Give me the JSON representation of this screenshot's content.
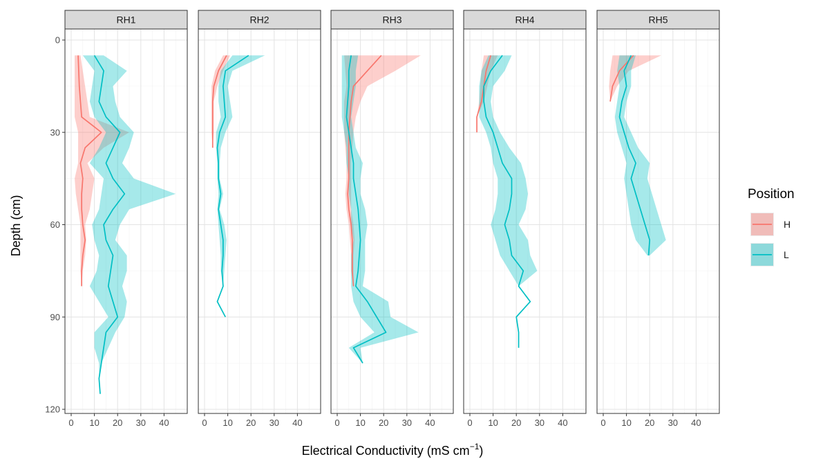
{
  "chart_data": {
    "type": "line",
    "orientation": "depth-profile",
    "xlabel": "Electrical Conductivity (mS cm",
    "xlabel_sup": "−1",
    "xlabel_close": ")",
    "ylabel": "Depth (cm)",
    "x_ticks": [
      "0",
      "10",
      "20",
      "30",
      "40"
    ],
    "y_ticks": [
      "0",
      "30",
      "60",
      "90",
      "120"
    ],
    "xlim": [
      -2,
      48
    ],
    "ylim": [
      0,
      120
    ],
    "y_reversed": true,
    "grid": true,
    "legend": {
      "title": "Position",
      "placement": "right",
      "entries": [
        {
          "label": "H",
          "color": "#F8766D",
          "fill": "#F8766D"
        },
        {
          "label": "L",
          "color": "#00BFC4",
          "fill": "#00BFC4"
        }
      ]
    },
    "panels": [
      {
        "name": "RH1",
        "series": [
          {
            "name": "H",
            "color": "#F8766D",
            "depth": [
              5,
              15,
              25,
              30,
              35,
              40,
              45,
              50,
              55,
              60,
              65,
              70,
              75,
              80
            ],
            "mean": [
              3,
              3.5,
              4.5,
              13,
              6,
              4,
              5,
              4.5,
              4.5,
              5,
              6,
              5,
              4.5,
              4.5
            ],
            "lower": [
              1.5,
              1.5,
              1.5,
              3,
              3,
              3,
              1.5,
              2,
              3,
              4,
              4,
              4,
              4,
              4.5
            ],
            "upper": [
              4,
              6,
              8,
              25,
              14,
              7,
              10,
              9,
              8,
              6,
              6.5,
              6,
              5,
              4.5
            ]
          },
          {
            "name": "L",
            "color": "#00BFC4",
            "depth": [
              5,
              10,
              15,
              20,
              25,
              30,
              35,
              40,
              45,
              50,
              55,
              60,
              65,
              70,
              75,
              80,
              85,
              90,
              95,
              100,
              105,
              110,
              115
            ],
            "mean": [
              10,
              14,
              13,
              12,
              15,
              21,
              18,
              15,
              18,
              23,
              18,
              14,
              15,
              18,
              17,
              16,
              18,
              20,
              15,
              14,
              13,
              12,
              12.5
            ],
            "lower": [
              5,
              10,
              9,
              8,
              10,
              15,
              12,
              8,
              14,
              13,
              12,
              9,
              10,
              12,
              11,
              8,
              12,
              16,
              10,
              10,
              12,
              12,
              12.5
            ],
            "upper": [
              14,
              24,
              18,
              19,
              21,
              27,
              25,
              22,
              27,
              45,
              25,
              21,
              19,
              24,
              24,
              22,
              24,
              23,
              19,
              16,
              13,
              12,
              12.5
            ]
          }
        ]
      },
      {
        "name": "RH2",
        "series": [
          {
            "name": "H",
            "color": "#F8766D",
            "depth": [
              5,
              10,
              15,
              20,
              25,
              30,
              35
            ],
            "mean": [
              9.5,
              6,
              4,
              3.5,
              3.5,
              3.5,
              3.5
            ],
            "lower": [
              8,
              4.5,
              3,
              3,
              3,
              3,
              3.5
            ],
            "upper": [
              11,
              8,
              5.5,
              4,
              4,
              4,
              3.5
            ]
          },
          {
            "name": "L",
            "color": "#00BFC4",
            "depth": [
              5,
              10,
              15,
              20,
              25,
              30,
              35,
              40,
              45,
              50,
              55,
              60,
              65,
              70,
              75,
              80,
              85,
              90
            ],
            "mean": [
              19,
              9,
              8,
              8.5,
              9,
              6.5,
              5.5,
              6,
              6,
              7,
              6,
              7,
              8,
              8,
              7.5,
              8,
              5.5,
              9
            ],
            "lower": [
              12,
              7,
              6,
              6,
              7,
              5,
              5,
              5.5,
              5.5,
              6,
              5.5,
              6,
              6.5,
              7,
              7,
              8,
              5.5,
              9
            ],
            "upper": [
              26,
              12,
              10,
              11,
              12,
              9,
              7,
              6.5,
              6.5,
              8,
              6.5,
              8.5,
              9.5,
              9,
              8.5,
              8,
              5.5,
              9
            ]
          }
        ]
      },
      {
        "name": "RH3",
        "series": [
          {
            "name": "H",
            "color": "#F8766D",
            "depth": [
              5,
              10,
              15,
              20,
              25,
              30,
              35,
              40,
              45,
              50,
              55,
              60,
              65,
              70,
              75,
              80
            ],
            "mean": [
              19,
              13,
              7,
              6,
              5.5,
              5,
              5,
              5,
              5,
              4.5,
              5,
              6,
              6.5,
              6.5,
              6.5,
              7
            ],
            "lower": [
              3,
              3.5,
              4,
              3,
              3,
              3,
              3.5,
              4,
              4,
              3.5,
              4,
              5,
              5.5,
              6,
              6,
              7
            ],
            "upper": [
              36,
              25,
              13,
              10,
              8,
              7,
              6.5,
              6,
              6,
              6,
              6,
              7,
              7.5,
              7,
              7,
              7
            ]
          },
          {
            "name": "L",
            "color": "#00BFC4",
            "depth": [
              5,
              10,
              15,
              20,
              25,
              30,
              35,
              40,
              45,
              50,
              55,
              60,
              65,
              70,
              75,
              80,
              85,
              90,
              95,
              100,
              105
            ],
            "mean": [
              6,
              5,
              5,
              4.5,
              4,
              5,
              6,
              7,
              7,
              8,
              9,
              9.5,
              10,
              9.5,
              9,
              8,
              13,
              17,
              21,
              7,
              11
            ],
            "lower": [
              2,
              2,
              2,
              2,
              2,
              3,
              4,
              4,
              5,
              5,
              6,
              6,
              7,
              6,
              6,
              6,
              7,
              10,
              16,
              5,
              11
            ],
            "upper": [
              9,
              8,
              8,
              7,
              6,
              7,
              8,
              11,
              10,
              10,
              12,
              13,
              12,
              12,
              12,
              11,
              22,
              23,
              35,
              10,
              11
            ]
          }
        ]
      },
      {
        "name": "RH4",
        "series": [
          {
            "name": "H",
            "color": "#F8766D",
            "depth": [
              5,
              10,
              15,
              20,
              25,
              30
            ],
            "mean": [
              9,
              7,
              6,
              5,
              3,
              3
            ],
            "lower": [
              6,
              5,
              4.5,
              4,
              3,
              3
            ],
            "upper": [
              12,
              9,
              7.5,
              6,
              3,
              3
            ]
          },
          {
            "name": "L",
            "color": "#00BFC4",
            "depth": [
              5,
              10,
              15,
              20,
              25,
              30,
              35,
              40,
              45,
              50,
              55,
              60,
              65,
              70,
              75,
              80,
              85,
              90,
              95,
              100
            ],
            "mean": [
              14,
              9,
              6,
              6,
              7,
              10,
              12,
              14,
              18,
              18,
              17,
              15,
              17,
              18,
              23,
              21,
              26,
              20,
              21,
              21
            ],
            "lower": [
              8,
              5,
              4,
              4,
              4,
              7,
              9,
              10,
              12,
              12,
              11,
              9,
              11,
              13,
              17,
              21,
              26,
              20,
              21,
              21
            ],
            "upper": [
              18,
              15,
              10,
              9,
              10,
              13,
              17,
              22,
              24,
              25,
              24,
              21,
              25,
              26,
              29,
              21,
              26,
              20,
              21,
              21
            ]
          }
        ]
      },
      {
        "name": "RH5",
        "series": [
          {
            "name": "H",
            "color": "#F8766D",
            "depth": [
              5,
              10,
              15,
              20
            ],
            "mean": [
              13,
              7,
              4,
              3
            ],
            "lower": [
              4,
              3,
              2.5,
              3
            ],
            "upper": [
              25,
              11,
              6,
              3
            ]
          },
          {
            "name": "L",
            "color": "#00BFC4",
            "depth": [
              5,
              10,
              15,
              20,
              25,
              30,
              35,
              40,
              45,
              50,
              55,
              60,
              65,
              70
            ],
            "mean": [
              12,
              9,
              10,
              8,
              7,
              9,
              11,
              14,
              12,
              14,
              16,
              18,
              20,
              19.5
            ],
            "lower": [
              7,
              6,
              7,
              6,
              5,
              6,
              8,
              10,
              9,
              10,
              11,
              12,
              14,
              19
            ],
            "upper": [
              14,
              12,
              12,
              10,
              9,
              12,
              15,
              20,
              19,
              21,
              23,
              25,
              27,
              20
            ]
          }
        ]
      }
    ]
  }
}
